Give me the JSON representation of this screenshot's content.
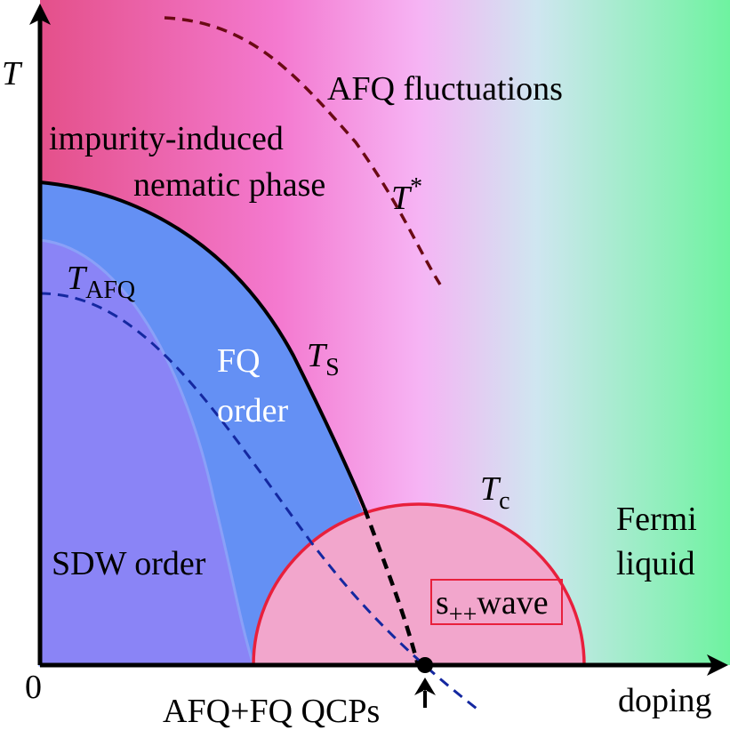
{
  "axes": {
    "y_label": "T",
    "origin": "0",
    "x_label": "doping"
  },
  "regions": {
    "afq_fluct": "AFQ fluctuations",
    "nematic_1": "impurity-induced",
    "nematic_2": "nematic phase",
    "fq_1": "FQ",
    "fq_2": "order",
    "sdw": "SDW order",
    "fermi_1": "Fermi",
    "fermi_2": "liquid",
    "swave": {
      "main": "s",
      "sub": "++",
      "rest": "wave"
    }
  },
  "curves": {
    "t_star": {
      "main": "T",
      "sup": "*"
    },
    "t_afq": {
      "main": "T",
      "sub": "AFQ"
    },
    "t_s": {
      "main": "T",
      "sub": "S"
    },
    "t_c": {
      "main": "T",
      "sub": "c"
    }
  },
  "qcp": "AFQ+FQ QCPs"
}
